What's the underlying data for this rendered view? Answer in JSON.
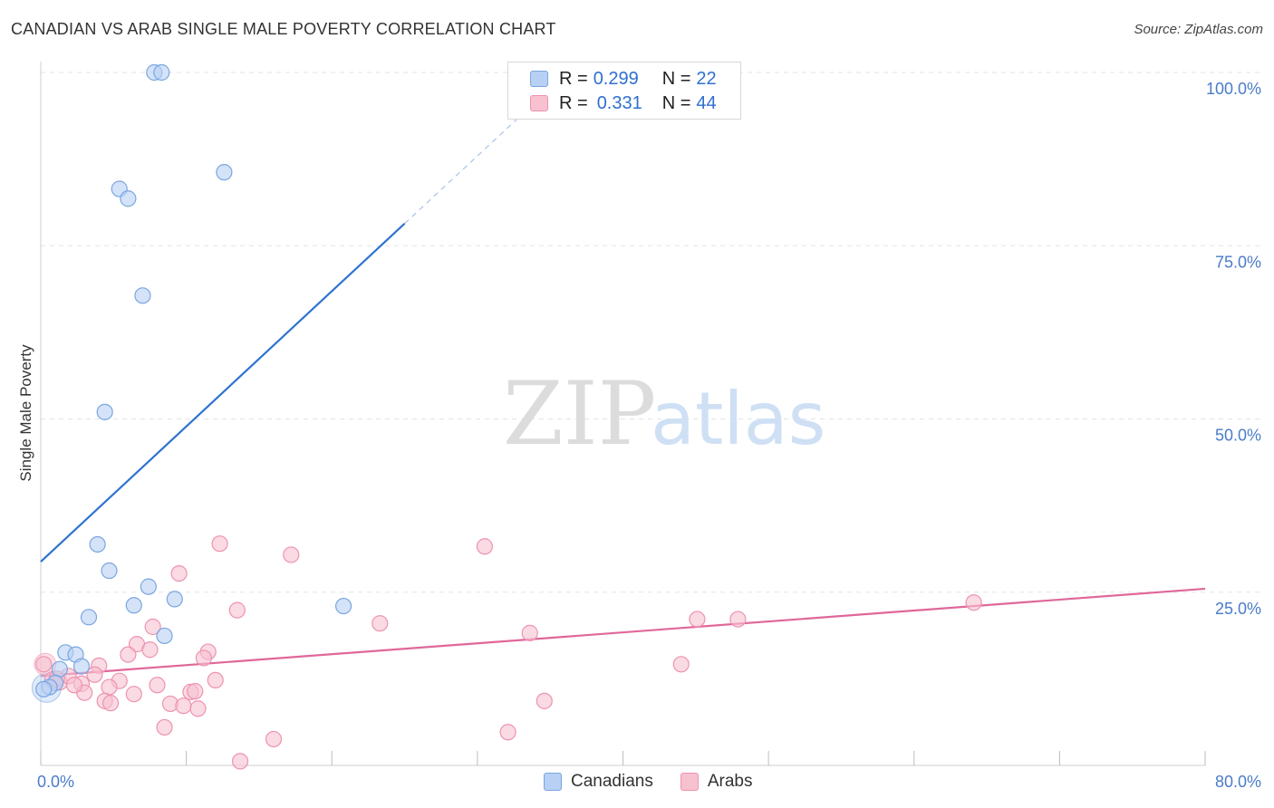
{
  "header": {
    "title": "CANADIAN VS ARAB SINGLE MALE POVERTY CORRELATION CHART",
    "source": "Source: ZipAtlas.com"
  },
  "legend": {
    "canadians": {
      "r_label": "R = ",
      "r_value": "0.299",
      "n_label": "N = ",
      "n_value": "22"
    },
    "arabs": {
      "r_label": "R = ",
      "r_value": "0.331",
      "n_label": "N = ",
      "n_value": "44"
    }
  },
  "bottom_legend": {
    "canadians": "Canadians",
    "arabs": "Arabs"
  },
  "watermark": {
    "zip": "ZIP",
    "atlas": "atlas"
  },
  "colors": {
    "canadians_fill": "#b7d0f3",
    "canadians_stroke": "#7aa6e0",
    "canadians_line": "#2f73d1",
    "arabs_fill": "#f7c1d0",
    "arabs_stroke": "#ee93b0",
    "arabs_line": "#e0679a"
  },
  "chart_data": {
    "type": "scatter",
    "title": "CANADIAN VS ARAB SINGLE MALE POVERTY CORRELATION CHART",
    "xlabel": "",
    "ylabel": "Single Male Poverty",
    "xlim": [
      0,
      80
    ],
    "ylim": [
      0,
      100
    ],
    "x_tick_labels": {
      "min": "0.0%",
      "max": "80.0%"
    },
    "y_tick_labels": [
      "25.0%",
      "50.0%",
      "75.0%",
      "100.0%"
    ],
    "y_tick_values": [
      25,
      50,
      75,
      100
    ],
    "series": [
      {
        "name": "Canadians",
        "points": [
          [
            7.8,
            100
          ],
          [
            8.3,
            100
          ],
          [
            12.6,
            85.6
          ],
          [
            5.4,
            83.2
          ],
          [
            6.0,
            81.8
          ],
          [
            7.0,
            67.8
          ],
          [
            4.4,
            51.0
          ],
          [
            3.9,
            31.9
          ],
          [
            4.7,
            28.1
          ],
          [
            7.4,
            25.8
          ],
          [
            9.2,
            24.0
          ],
          [
            6.4,
            23.1
          ],
          [
            3.3,
            21.4
          ],
          [
            8.5,
            18.7
          ],
          [
            1.7,
            16.3
          ],
          [
            2.4,
            16.0
          ],
          [
            2.8,
            14.3
          ],
          [
            1.3,
            13.9
          ],
          [
            20.8,
            23.0
          ],
          [
            1.0,
            11.9
          ],
          [
            0.6,
            11.3
          ],
          [
            0.2,
            11.0
          ]
        ],
        "trend": {
          "x": [
            0,
            25
          ],
          "y": [
            29.4,
            78.2
          ],
          "dashed_to": {
            "x": 33,
            "y": 93.8
          }
        }
      },
      {
        "name": "Arabs",
        "points": [
          [
            12.3,
            32.0
          ],
          [
            17.2,
            30.4
          ],
          [
            30.5,
            31.6
          ],
          [
            9.5,
            27.7
          ],
          [
            13.5,
            22.4
          ],
          [
            23.3,
            20.5
          ],
          [
            33.6,
            19.1
          ],
          [
            45.1,
            21.1
          ],
          [
            47.9,
            21.1
          ],
          [
            64.1,
            23.5
          ],
          [
            7.7,
            20.0
          ],
          [
            6.6,
            17.5
          ],
          [
            7.5,
            16.7
          ],
          [
            6.0,
            16.0
          ],
          [
            11.5,
            16.4
          ],
          [
            11.2,
            15.5
          ],
          [
            4.0,
            14.4
          ],
          [
            44.0,
            14.6
          ],
          [
            3.7,
            13.1
          ],
          [
            0.2,
            14.6
          ],
          [
            0.8,
            12.4
          ],
          [
            1.3,
            12.0
          ],
          [
            1.9,
            12.9
          ],
          [
            5.4,
            12.2
          ],
          [
            12.0,
            12.3
          ],
          [
            2.8,
            11.8
          ],
          [
            4.7,
            11.3
          ],
          [
            8.0,
            11.6
          ],
          [
            10.3,
            10.6
          ],
          [
            3.0,
            10.5
          ],
          [
            6.4,
            10.3
          ],
          [
            10.6,
            10.7
          ],
          [
            4.4,
            9.3
          ],
          [
            4.8,
            9.0
          ],
          [
            8.9,
            8.9
          ],
          [
            9.8,
            8.6
          ],
          [
            10.8,
            8.2
          ],
          [
            34.6,
            9.3
          ],
          [
            8.5,
            5.5
          ],
          [
            32.1,
            4.8
          ],
          [
            16.0,
            3.8
          ],
          [
            13.7,
            0.6
          ],
          [
            1.1,
            12.5
          ],
          [
            2.3,
            11.6
          ]
        ],
        "trend": {
          "x": [
            0,
            80
          ],
          "y": [
            12.9,
            25.5
          ]
        }
      }
    ]
  }
}
